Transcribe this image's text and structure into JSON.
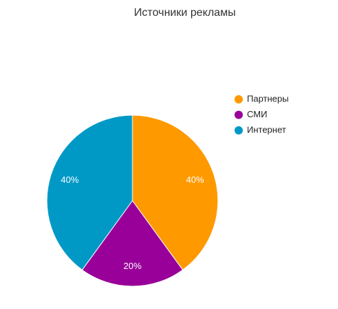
{
  "chart_data": {
    "type": "pie",
    "title": "Источники рекламы",
    "categories": [
      "Партнеры",
      "СМИ",
      "Интернет"
    ],
    "values": [
      40,
      20,
      40
    ],
    "value_labels": [
      "40%",
      "20%",
      "40%"
    ],
    "colors": [
      "#ff9900",
      "#990099",
      "#0099c6"
    ],
    "legend": "right"
  }
}
